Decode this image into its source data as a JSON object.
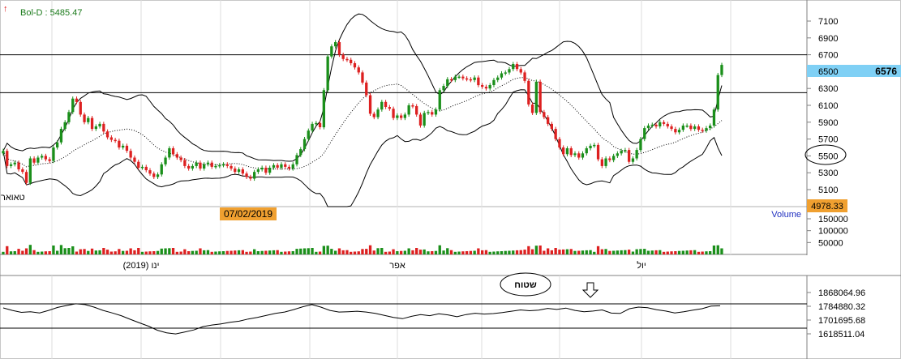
{
  "price_panel": {
    "indicator_label": "Bol-D : 5485.47",
    "date_label": "07/02/2019",
    "left_clip_label": "טאואר",
    "current_price": "6576",
    "low_label": "4978.33",
    "highlight_tick": "6500",
    "circled_tick": "5500",
    "y_ticks": [
      "7100",
      "6900",
      "6700",
      "6500",
      "6300",
      "6100",
      "5900",
      "5700",
      "5500",
      "5300",
      "5100"
    ]
  },
  "volume_panel": {
    "label": "Volume",
    "y_ticks": [
      "150000",
      "100000",
      "50000"
    ]
  },
  "x_axis": {
    "labels": [
      "ינו (2019)",
      "אפר",
      "יול"
    ]
  },
  "lower_panel": {
    "button_label": "שטוח",
    "y_ticks": [
      "1868064.96",
      "1784880.32",
      "1701695.68",
      "1618511.04"
    ]
  },
  "colors": {
    "up": "#1a8f1a",
    "down": "#dd2020",
    "highlight": "#7fd0f5",
    "label_bg": "#f0a030"
  },
  "chart_data": {
    "type": "line",
    "title": "",
    "xlabel": "",
    "ylabel": "",
    "price_ylim": [
      4978,
      7250
    ],
    "horizontal_lines": [
      6700,
      6250
    ],
    "x_labels": [
      "ינו (2019)",
      "אפר",
      "יול"
    ],
    "close": [
      5560,
      5380,
      5400,
      5420,
      5340,
      5310,
      5180,
      5470,
      5420,
      5480,
      5500,
      5460,
      5440,
      5600,
      5660,
      5820,
      5900,
      6020,
      6180,
      6140,
      5990,
      5900,
      5950,
      5820,
      5850,
      5880,
      5790,
      5720,
      5690,
      5680,
      5600,
      5620,
      5560,
      5480,
      5430,
      5360,
      5370,
      5330,
      5290,
      5250,
      5280,
      5400,
      5480,
      5590,
      5520,
      5480,
      5450,
      5380,
      5350,
      5380,
      5420,
      5350,
      5400,
      5420,
      5370,
      5380,
      5390,
      5400,
      5380,
      5350,
      5310,
      5340,
      5290,
      5250,
      5230,
      5310,
      5340,
      5360,
      5300,
      5360,
      5390,
      5360,
      5400,
      5370,
      5350,
      5400,
      5510,
      5580,
      5700,
      5800,
      5880,
      5890,
      5840,
      6280,
      6680,
      6800,
      6850,
      6700,
      6650,
      6640,
      6600,
      6550,
      6490,
      6370,
      6220,
      6000,
      5960,
      6050,
      6140,
      6080,
      6060,
      5950,
      5980,
      5950,
      5990,
      6100,
      6090,
      5990,
      5860,
      6010,
      6020,
      5990,
      6050,
      6280,
      6330,
      6410,
      6400,
      6440,
      6440,
      6420,
      6410,
      6400,
      6430,
      6340,
      6320,
      6300,
      6340,
      6400,
      6430,
      6480,
      6490,
      6530,
      6590,
      6530,
      6490,
      6390,
      6110,
      6010,
      6380,
      6020,
      5960,
      5880,
      5820,
      5700,
      5600,
      5520,
      5590,
      5510,
      5530,
      5480,
      5530,
      5590,
      5620,
      5630,
      5460,
      5380,
      5470,
      5450,
      5500,
      5530,
      5560,
      5570,
      5430,
      5470,
      5570,
      5700,
      5830,
      5860,
      5870,
      5850,
      5900,
      5880,
      5850,
      5820,
      5780,
      5810,
      5860,
      5860,
      5820,
      5850,
      5810,
      5800,
      5830,
      5860,
      6050,
      6460,
      6580
    ],
    "lower_indicator": [
      1775000,
      1760000,
      1748000,
      1752000,
      1745000,
      1760000,
      1778000,
      1790000,
      1800000,
      1795000,
      1780000,
      1760000,
      1745000,
      1728000,
      1706000,
      1685000,
      1665000,
      1640000,
      1625000,
      1618000,
      1630000,
      1642000,
      1662000,
      1672000,
      1678000,
      1688000,
      1695000,
      1708000,
      1718000,
      1730000,
      1742000,
      1750000,
      1765000,
      1782000,
      1795000,
      1780000,
      1760000,
      1750000,
      1752000,
      1755000,
      1750000,
      1742000,
      1730000,
      1718000,
      1710000,
      1724000,
      1735000,
      1728000,
      1740000,
      1733000,
      1722000,
      1735000,
      1743000,
      1738000,
      1741000,
      1747000,
      1755000,
      1763000,
      1758000,
      1762000,
      1772000,
      1766000,
      1774000,
      1760000,
      1752000,
      1756000,
      1763000,
      1744000,
      1742000,
      1770000,
      1780000,
      1776000,
      1764000,
      1756000,
      1745000,
      1752000,
      1762000,
      1770000,
      1786000,
      1788000
    ],
    "lower_ylim": [
      1600000,
      1880000
    ]
  }
}
